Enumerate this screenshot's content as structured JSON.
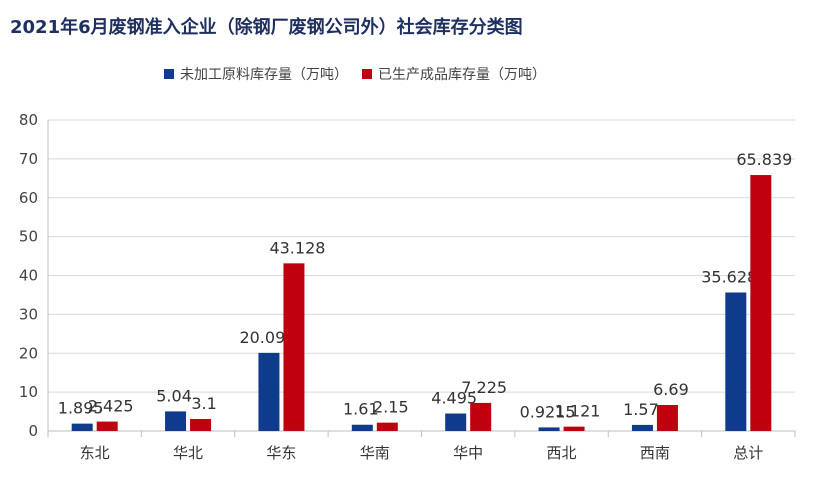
{
  "chart_data": {
    "type": "bar",
    "title": "2021年6月废钢准入企业（除钢厂废钢公司外）社会库存分类图",
    "categories": [
      "东北",
      "华北",
      "华东",
      "华南",
      "华中",
      "西北",
      "西南",
      "总计"
    ],
    "series": [
      {
        "name": "未加工原料库存量（万吨）",
        "color": "#0f3b8c",
        "values": [
          1.895,
          5.04,
          20.097,
          1.61,
          4.495,
          0.9215,
          1.57,
          35.6285
        ],
        "labels": [
          "1.895",
          "5.04",
          "20.097",
          "1.61",
          "4.495",
          "0.9215",
          "1.57",
          "35.6285"
        ]
      },
      {
        "name": "已生产成品库存量（万吨）",
        "color": "#c0000f",
        "values": [
          2.425,
          3.1,
          43.128,
          2.15,
          7.225,
          1.121,
          6.69,
          65.839
        ],
        "labels": [
          "2.425",
          "3.1",
          "43.128",
          "2.15",
          "7.225",
          "1.121",
          "6.69",
          "65.839"
        ]
      }
    ],
    "ylim": [
      0,
      80
    ],
    "yticks": [
      0,
      10,
      20,
      30,
      40,
      50,
      60,
      70,
      80
    ],
    "grid": true,
    "legend": "top-center"
  }
}
